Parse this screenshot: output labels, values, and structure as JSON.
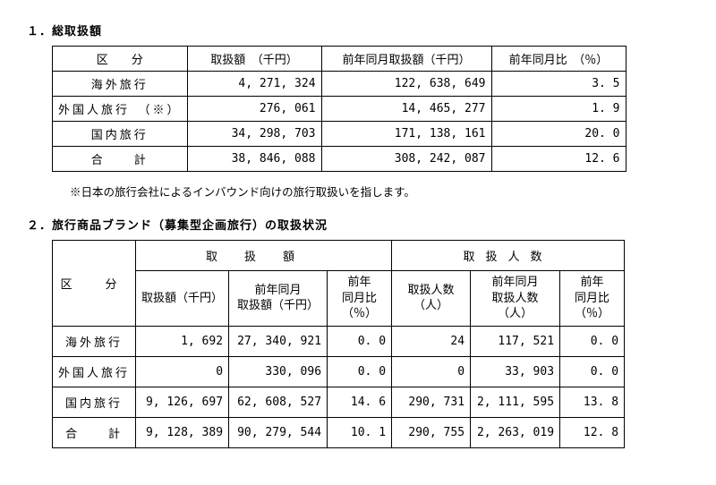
{
  "section1": {
    "title": "１．総取扱額",
    "headers": {
      "category": "区　　分",
      "amount": "取扱額　（千円）",
      "prev_amount": "前年同月取扱額（千円）",
      "ratio": "前年同月比　（％）"
    },
    "rows": [
      {
        "cat": "海外旅行",
        "amount": "4, 271, 324",
        "prev": "122, 638, 649",
        "ratio": "3. 5"
      },
      {
        "cat": "外国人旅行　（※）",
        "amount": "276, 061",
        "prev": "14, 465, 277",
        "ratio": "1. 9"
      },
      {
        "cat": "国内旅行",
        "amount": "34, 298, 703",
        "prev": "171, 138, 161",
        "ratio": "20. 0"
      },
      {
        "cat": "合　　計",
        "amount": "38, 846, 088",
        "prev": "308, 242, 087",
        "ratio": "12. 6"
      }
    ],
    "footnote": "※日本の旅行会社によるインバウンド向けの旅行取扱いを指します。"
  },
  "section2": {
    "title": "２．旅行商品ブランド（募集型企画旅行）の取扱状況",
    "group_headers": {
      "category": "区　分",
      "amount_group": "取扱額",
      "people_group": "取扱人数"
    },
    "sub_headers": {
      "a1": "取扱額（千円）",
      "a2_l1": "前年同月",
      "a2_l2": "取扱額（千円）",
      "a3_l1": "前年",
      "a3_l2": "同月比",
      "a3_l3": "（％）",
      "b1_l1": "取扱人数",
      "b1_l2": "（人）",
      "b2_l1": "前年同月",
      "b2_l2": "取扱人数",
      "b2_l3": "（人）",
      "b3_l1": "前年",
      "b3_l2": "同月比",
      "b3_l3": "（％）"
    },
    "rows": [
      {
        "cat": "海外旅行",
        "a1": "1, 692",
        "a2": "27, 340, 921",
        "a3": "0. 0",
        "b1": "24",
        "b2": "117, 521",
        "b3": "0. 0"
      },
      {
        "cat": "外国人旅行",
        "a1": "0",
        "a2": "330, 096",
        "a3": "0. 0",
        "b1": "0",
        "b2": "33, 903",
        "b3": "0. 0"
      },
      {
        "cat": "国内旅行",
        "a1": "9, 126, 697",
        "a2": "62, 608, 527",
        "a3": "14. 6",
        "b1": "290, 731",
        "b2": "2, 111, 595",
        "b3": "13. 8"
      },
      {
        "cat": "合　　計",
        "a1": "9, 128, 389",
        "a2": "90, 279, 544",
        "a3": "10. 1",
        "b1": "290, 755",
        "b2": "2, 263, 019",
        "b3": "12. 8"
      }
    ]
  }
}
